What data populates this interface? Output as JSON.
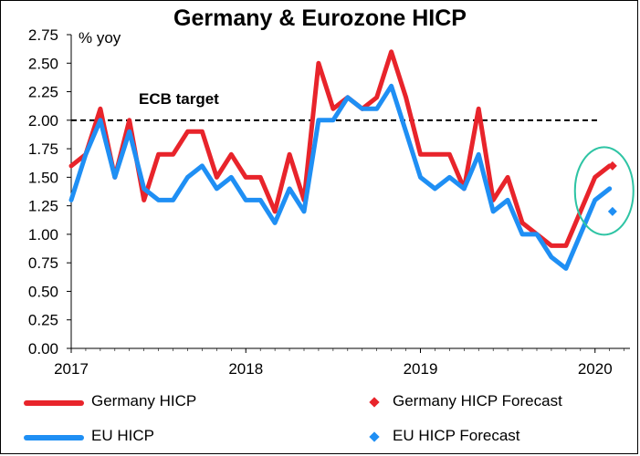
{
  "chart_data": {
    "type": "line",
    "title": "Germany & Eurozone HICP",
    "ylabel": "% yoy",
    "ylim": [
      0,
      2.75
    ],
    "yticks": [
      "0.00",
      "0.25",
      "0.50",
      "0.75",
      "1.00",
      "1.25",
      "1.50",
      "1.75",
      "2.00",
      "2.25",
      "2.50",
      "2.75"
    ],
    "xticks": [
      "2017",
      "2018",
      "2019",
      "2020"
    ],
    "xrange": [
      2017.0,
      2020.2
    ],
    "target": {
      "label": "ECB target",
      "value": 2.0
    },
    "series": [
      {
        "name": "Germany HICP",
        "color": "#e8242b",
        "start": 2017.0,
        "values": [
          1.6,
          1.7,
          2.1,
          1.5,
          2.0,
          1.3,
          1.7,
          1.7,
          1.9,
          1.9,
          1.5,
          1.7,
          1.5,
          1.5,
          1.2,
          1.7,
          1.3,
          2.5,
          2.1,
          2.2,
          2.1,
          2.2,
          2.6,
          2.2,
          1.7,
          1.7,
          1.7,
          1.4,
          2.1,
          1.3,
          1.5,
          1.1,
          1.0,
          0.9,
          0.9,
          1.2,
          1.5,
          1.6
        ]
      },
      {
        "name": "EU HICP",
        "color": "#1f8ff4",
        "start": 2017.0,
        "values": [
          1.3,
          1.7,
          2.0,
          1.5,
          1.9,
          1.4,
          1.3,
          1.3,
          1.5,
          1.6,
          1.4,
          1.5,
          1.3,
          1.3,
          1.1,
          1.4,
          1.2,
          2.0,
          2.0,
          2.2,
          2.1,
          2.1,
          2.3,
          1.9,
          1.5,
          1.4,
          1.5,
          1.4,
          1.7,
          1.2,
          1.3,
          1.0,
          1.0,
          0.8,
          0.7,
          1.0,
          1.3,
          1.4
        ]
      }
    ],
    "forecasts": [
      {
        "name": "Germany HICP Forecast",
        "color": "#e8242b",
        "x": 2020.1,
        "y": 1.6
      },
      {
        "name": "EU HICP Forecast",
        "color": "#1f8ff4",
        "x": 2020.1,
        "y": 1.2
      }
    ],
    "highlight_color": "#2ec4a4"
  }
}
